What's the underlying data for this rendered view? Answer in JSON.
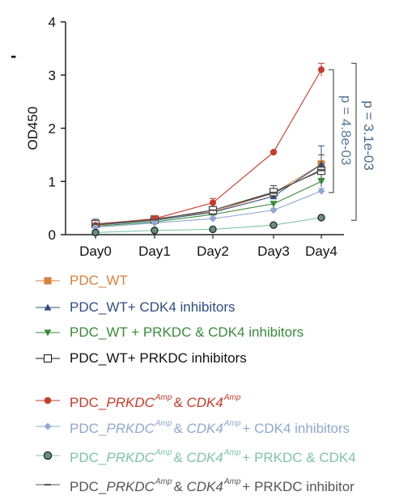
{
  "panel_mark": "-",
  "chart_data": {
    "type": "line",
    "categories": [
      "Day0",
      "Day1",
      "Day2",
      "Day3",
      "Day4"
    ],
    "ylabel": "OD450",
    "xlabel": "",
    "ylim": [
      0,
      4
    ],
    "yticks": [
      0,
      1,
      2,
      3,
      4
    ],
    "grid": false,
    "legend_placement": "below",
    "series": [
      {
        "name": "PDC_WT",
        "color": "#d9813b",
        "marker": "square",
        "values": [
          0.2,
          0.3,
          0.43,
          0.78,
          1.32
        ],
        "errors": [
          0.04,
          0.03,
          0.05,
          0.06,
          0.07
        ]
      },
      {
        "name": "PDC_WT+ CDK4 inhibitors",
        "color": "#2f4d82",
        "marker": "triangle-up",
        "values": [
          0.18,
          0.27,
          0.42,
          0.72,
          1.32
        ],
        "errors": [
          0.03,
          0.03,
          0.04,
          0.05,
          0.35
        ]
      },
      {
        "name": "PDC_WT + PRKDC & CDK4 inhibitors",
        "color": "#3a8a3a",
        "marker": "triangle-down",
        "values": [
          0.16,
          0.24,
          0.38,
          0.58,
          1.0
        ],
        "errors": [
          0.03,
          0.02,
          0.03,
          0.04,
          0.06
        ]
      },
      {
        "name": "PDC_WT+ PRKDC inhibitors",
        "color": "#444444",
        "marker": "square-open",
        "values": [
          0.2,
          0.28,
          0.46,
          0.8,
          1.2
        ],
        "errors": [
          0.09,
          0.03,
          0.05,
          0.12,
          0.3
        ]
      },
      {
        "name": "PDC_PRKDC Amp & CDK4 Amp",
        "color": "#c83a2a",
        "marker": "circle",
        "values": [
          0.18,
          0.3,
          0.6,
          1.55,
          3.1
        ],
        "errors": [
          0.03,
          0.03,
          0.08,
          0.03,
          0.12
        ]
      },
      {
        "name": "PDC_PRKDC Amp & CDK4 Amp + CDK4 inhibitors",
        "color": "#8fa8d2",
        "marker": "diamond",
        "values": [
          0.14,
          0.22,
          0.3,
          0.46,
          0.82
        ],
        "errors": [
          0.03,
          0.02,
          0.03,
          0.03,
          0.05
        ]
      },
      {
        "name": "PDC_PRKDC Amp & CDK4 Amp + PRKDC & CDK4 inhibitors",
        "color": "#7fc4a4",
        "marker": "circle-dark",
        "values": [
          0.04,
          0.08,
          0.1,
          0.18,
          0.32
        ],
        "errors": [
          0.02,
          0.02,
          0.02,
          0.02,
          0.03
        ]
      },
      {
        "name": "PDC_PRKDC Amp & CDK4 Amp + PRKDC inhibitors",
        "color": "#555555",
        "marker": "dash",
        "values": [
          0.2,
          0.28,
          0.46,
          0.78,
          1.22
        ],
        "errors": [
          0.04,
          0.03,
          0.05,
          0.06,
          0.07
        ]
      }
    ],
    "annotations": [
      {
        "text": "p = 4.8e-03",
        "color": "#5a7a9a"
      },
      {
        "text": "p = 3.1e-03",
        "color": "#4a6a8a"
      }
    ]
  },
  "legend": [
    {
      "parts": [
        {
          "t": "PDC_WT"
        }
      ],
      "color": "#d9813b",
      "marker": "square"
    },
    {
      "parts": [
        {
          "t": "PDC_WT+ CDK4 inhibitors"
        }
      ],
      "color": "#2f4d82",
      "marker": "triangle-up"
    },
    {
      "parts": [
        {
          "t": "PDC_WT + PRKDC & CDK4 inhibitors"
        }
      ],
      "color": "#3a8a3a",
      "marker": "triangle-down"
    },
    {
      "parts": [
        {
          "t": "PDC_WT+ PRKDC inhibitors"
        }
      ],
      "color": "#111111",
      "marker": "square-open"
    },
    {
      "parts": [
        {
          "t": "PDC_"
        },
        {
          "t": "PRKDC",
          "i": true
        },
        {
          "t": "Amp",
          "s": true
        },
        {
          "t": "& "
        },
        {
          "t": "CDK4",
          "i": true
        },
        {
          "t": "Amp",
          "s": true
        }
      ],
      "color": "#c83a2a",
      "marker": "circle"
    },
    {
      "parts": [
        {
          "t": "PDC_"
        },
        {
          "t": "PRKDC",
          "i": true
        },
        {
          "t": "Amp",
          "s": true
        },
        {
          "t": "& "
        },
        {
          "t": "CDK4",
          "i": true
        },
        {
          "t": "Amp",
          "s": true
        },
        {
          "t": "+ CDK4 inhibitors"
        }
      ],
      "color": "#8fa8d2",
      "marker": "diamond"
    },
    {
      "parts": [
        {
          "t": "PDC_"
        },
        {
          "t": "PRKDC",
          "i": true
        },
        {
          "t": "Amp",
          "s": true
        },
        {
          "t": "& "
        },
        {
          "t": "CDK4",
          "i": true
        },
        {
          "t": "Amp",
          "s": true
        },
        {
          "t": "+ PRKDC & CDK4"
        }
      ],
      "color": "#7fc4a4",
      "marker": "circle-dark"
    },
    {
      "parts": [
        {
          "t": "PDC_"
        },
        {
          "t": "PRKDC",
          "i": true
        },
        {
          "t": "Amp",
          "s": true
        },
        {
          "t": "& "
        },
        {
          "t": "CDK4",
          "i": true
        },
        {
          "t": "Amp",
          "s": true
        },
        {
          "t": "+ PRKDC inhibitor"
        }
      ],
      "color": "#555555",
      "marker": "dash"
    }
  ]
}
